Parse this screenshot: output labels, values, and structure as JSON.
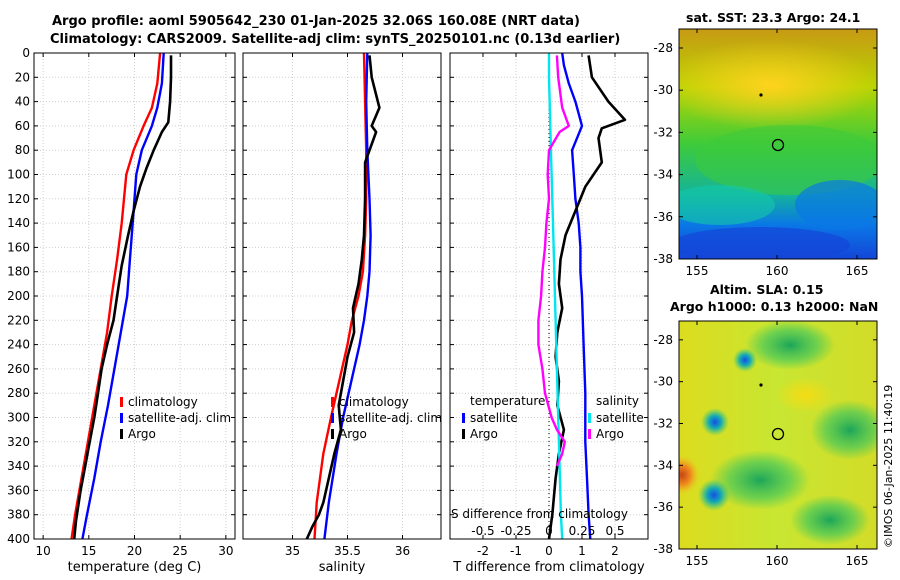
{
  "title_line1": "Argo profile: aoml 5905642_230 01-Jan-2025 32.06S 160.08E (NRT data)",
  "title_line2": "Climatology: CARS2009. Satellite-adj clim: synTS_20250101.nc (0.13d earlier)",
  "credit": "©IMOS 06-Jan-2025 11:40:19",
  "colors": {
    "climatology": "#ff0000",
    "satellite": "#0000ff",
    "argo": "#000000",
    "sal_sat": "#00e5ee",
    "sal_argo": "#ff00ff",
    "grid": "#cccccc"
  },
  "chart_data": [
    {
      "type": "line",
      "title": "temperature profile",
      "xlabel": "temperature (deg C)",
      "xlim": [
        9,
        31
      ],
      "xticks": [
        "10",
        "15",
        "20",
        "25",
        "30"
      ],
      "ylim": [
        0,
        400
      ],
      "yticks": [
        "0",
        "20",
        "40",
        "60",
        "80",
        "100",
        "120",
        "140",
        "160",
        "180",
        "200",
        "220",
        "240",
        "260",
        "280",
        "300",
        "320",
        "340",
        "360",
        "380",
        "400"
      ],
      "legend": [
        "climatology",
        "satellite-adj. clim",
        "Argo"
      ],
      "series": [
        {
          "name": "climatology",
          "color": "#ff0000",
          "x": [
            22.8,
            22.5,
            21.9,
            21.0,
            19.9,
            19.1,
            18.6,
            18.1,
            17.5,
            17.0,
            16.3,
            15.6,
            14.9,
            14.2,
            13.5,
            13.1
          ],
          "y": [
            0,
            25,
            45,
            60,
            80,
            100,
            140,
            170,
            200,
            230,
            260,
            290,
            320,
            350,
            380,
            400
          ]
        },
        {
          "name": "satellite-adj. clim",
          "color": "#0000ff",
          "x": [
            23.2,
            23.0,
            22.5,
            21.9,
            20.8,
            20.2,
            19.8,
            19.5,
            19.2,
            18.5,
            17.8,
            17.1,
            16.3,
            15.6,
            14.8,
            14.3
          ],
          "y": [
            0,
            25,
            45,
            60,
            80,
            100,
            140,
            170,
            200,
            230,
            260,
            290,
            320,
            350,
            380,
            400
          ]
        },
        {
          "name": "Argo",
          "color": "#000000",
          "x": [
            24.0,
            24.0,
            23.9,
            23.7,
            23.0,
            22.1,
            21.3,
            20.6,
            19.9,
            19.3,
            18.6,
            18.1,
            17.7,
            17.0,
            16.4,
            16.0,
            15.6,
            15.1,
            14.6,
            14.1,
            13.6,
            13.4
          ],
          "y": [
            2,
            20,
            40,
            57,
            65,
            80,
            95,
            110,
            130,
            150,
            175,
            200,
            220,
            240,
            260,
            280,
            300,
            320,
            340,
            360,
            385,
            400
          ]
        }
      ]
    },
    {
      "type": "line",
      "title": "salinity profile",
      "xlabel": "salinity",
      "xlim": [
        34.55,
        36.35
      ],
      "xticks": [
        "35",
        "35.5",
        "36"
      ],
      "ylim": [
        0,
        400
      ],
      "legend": [
        "climatology",
        "satellite-adj. clim",
        "Argo"
      ],
      "series": [
        {
          "name": "climatology",
          "color": "#ff0000",
          "x": [
            35.65,
            35.66,
            35.67,
            35.67,
            35.66,
            35.64,
            35.6,
            35.54,
            35.5,
            35.45,
            35.4,
            35.35,
            35.28,
            35.22,
            35.2
          ],
          "y": [
            0,
            40,
            80,
            120,
            150,
            180,
            200,
            220,
            240,
            260,
            280,
            300,
            330,
            370,
            400
          ]
        },
        {
          "name": "satellite-adj. clim",
          "color": "#0000ff",
          "x": [
            35.68,
            35.67,
            35.68,
            35.7,
            35.71,
            35.7,
            35.68,
            35.65,
            35.61,
            35.56,
            35.51,
            35.46,
            35.4,
            35.33,
            35.29
          ],
          "y": [
            0,
            40,
            80,
            120,
            150,
            180,
            200,
            220,
            240,
            260,
            280,
            300,
            330,
            370,
            400
          ]
        },
        {
          "name": "Argo",
          "color": "#000000",
          "x": [
            35.7,
            35.72,
            35.79,
            35.72,
            35.76,
            35.66,
            35.66,
            35.65,
            35.63,
            35.6,
            35.55,
            35.56,
            35.5,
            35.46,
            35.42,
            35.44,
            35.38,
            35.33,
            35.28,
            35.24,
            35.18,
            35.13
          ],
          "y": [
            2,
            20,
            45,
            60,
            65,
            90,
            120,
            150,
            170,
            190,
            210,
            230,
            250,
            270,
            290,
            310,
            330,
            350,
            370,
            380,
            390,
            400
          ]
        }
      ]
    },
    {
      "type": "line",
      "title": "difference from climatology",
      "xlabel": "T difference from climatology",
      "xlim": [
        -3.0,
        3.0
      ],
      "xticks": [
        "-2",
        "-1",
        "0",
        "1",
        "2"
      ],
      "s_xlabel": "S difference from climatology",
      "s_xlim": [
        -0.75,
        0.75
      ],
      "s_xticks": [
        "-0.5",
        "-0.25",
        "0",
        "0.25",
        "0.5"
      ],
      "ylim": [
        0,
        400
      ],
      "legend_temperature_title": "temperature",
      "legend_salinity_title": "salinity",
      "legend_temperature": [
        "satellite",
        "Argo"
      ],
      "legend_salinity": [
        "satellite",
        "Argo"
      ],
      "series": [
        {
          "name": "temperature satellite",
          "color": "#0000ff",
          "x": [
            0.4,
            0.45,
            0.6,
            0.8,
            1.0,
            0.7,
            0.75,
            0.8,
            0.9,
            0.95,
            0.95,
            1.0,
            1.05,
            1.1,
            1.1,
            1.15,
            1.2,
            1.25
          ],
          "y": [
            0,
            10,
            25,
            40,
            60,
            80,
            100,
            120,
            140,
            160,
            180,
            200,
            240,
            280,
            320,
            350,
            380,
            400
          ]
        },
        {
          "name": "temperature Argo",
          "color": "#000000",
          "x": [
            1.2,
            1.3,
            1.8,
            2.3,
            1.6,
            1.5,
            1.6,
            1.1,
            0.8,
            0.5,
            0.35,
            0.3,
            0.4,
            0.25,
            0.2,
            0.3,
            0.25,
            0.45,
            0.3,
            0.2,
            0.1,
            0.0
          ],
          "y": [
            2,
            20,
            40,
            55,
            62,
            70,
            90,
            110,
            130,
            150,
            170,
            190,
            210,
            230,
            250,
            270,
            290,
            310,
            330,
            350,
            380,
            400
          ]
        },
        {
          "name": "salinity satellite",
          "color": "#00e5ee",
          "x": [
            0.0,
            0.0,
            0.01,
            0.02,
            0.03,
            0.04,
            0.05,
            0.06,
            0.07,
            0.08,
            0.09,
            0.1
          ],
          "y": [
            0,
            20,
            60,
            100,
            140,
            180,
            220,
            260,
            300,
            340,
            380,
            400
          ]
        },
        {
          "name": "salinity Argo",
          "color": "#ff00ff",
          "x": [
            0.06,
            0.07,
            0.1,
            0.15,
            0.08,
            0.0,
            -0.01,
            0.0,
            -0.02,
            -0.03,
            -0.05,
            -0.06,
            -0.08,
            -0.08,
            -0.05,
            -0.03,
            0.02,
            0.06,
            0.12,
            0.1,
            0.06
          ],
          "y": [
            2,
            20,
            45,
            60,
            65,
            80,
            100,
            120,
            140,
            160,
            180,
            200,
            220,
            240,
            260,
            280,
            300,
            310,
            320,
            330,
            340
          ]
        }
      ]
    },
    {
      "type": "heatmap",
      "title": "sat. SST: 23.3 Argo: 24.1",
      "xticks": [
        "155",
        "160",
        "165"
      ],
      "yticks": [
        "-28",
        "-30",
        "-32",
        "-34",
        "-36",
        "-38"
      ]
    },
    {
      "type": "heatmap",
      "title_line1": "Altim. SLA: 0.15",
      "title_line2": "Argo h1000: 0.13 h2000: NaN",
      "xticks": [
        "155",
        "160",
        "165"
      ],
      "yticks": [
        "-28",
        "-30",
        "-32",
        "-34",
        "-36",
        "-38"
      ]
    }
  ]
}
